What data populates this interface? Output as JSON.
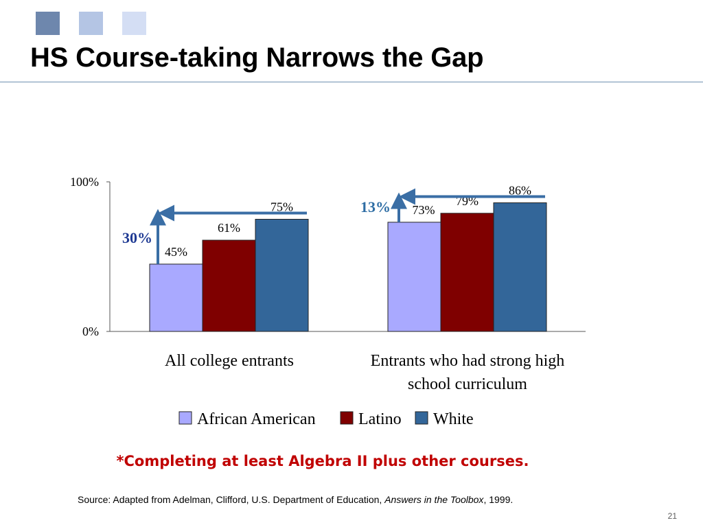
{
  "slide": {
    "title": "HS Course-taking Narrows the Gap",
    "deco_colors": [
      "#6e87ad",
      "#b4c5e4",
      "#d4def4"
    ],
    "footnote": "*Completing at least Algebra II plus other courses.",
    "source_prefix": "Source: Adapted from Adelman, Clifford, U.S. Department of Education, ",
    "source_italic": "Answers in the Toolbox",
    "source_suffix": ", 1999.",
    "page_number": "21"
  },
  "chart_data": {
    "type": "bar",
    "categories": [
      "All college entrants",
      "Entrants who had strong high school curriculum"
    ],
    "category_lines": [
      [
        "All college entrants"
      ],
      [
        "Entrants who had strong high",
        "school curriculum"
      ]
    ],
    "series": [
      {
        "name": "African American",
        "values": [
          45,
          73
        ],
        "labels": [
          "45%",
          "73%"
        ],
        "color": "#a9a9ff"
      },
      {
        "name": "Latino",
        "values": [
          61,
          79
        ],
        "labels": [
          "61%",
          "79%"
        ],
        "color": "#7f0000"
      },
      {
        "name": "White",
        "values": [
          75,
          86
        ],
        "labels": [
          "75%",
          "86%"
        ],
        "color": "#336699"
      }
    ],
    "y_ticks": [
      "100%",
      "0%"
    ],
    "ylim": [
      0,
      100
    ],
    "grid": false,
    "legend": "bottom",
    "gap_annotations": [
      {
        "category": "All college entrants",
        "label": "30%",
        "label_color": "#1f3a93"
      },
      {
        "category": "Entrants who had strong high school curriculum",
        "label": "13%",
        "label_color": "#2e6da4"
      }
    ],
    "arrow_color": "#3a6ea5"
  }
}
